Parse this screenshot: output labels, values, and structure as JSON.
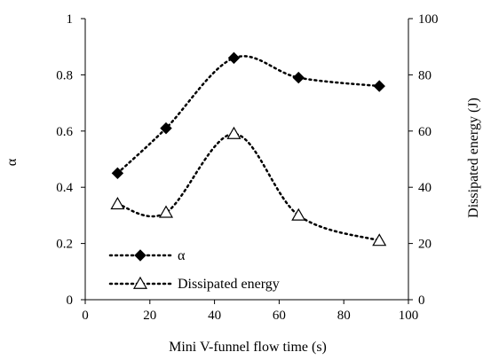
{
  "chart_data": {
    "type": "line",
    "x": [
      10,
      25,
      46,
      66,
      91
    ],
    "xlabel": "Mini V-funnel flow time (s)",
    "xlim": [
      0,
      100
    ],
    "xticks": [
      "0",
      "20",
      "40",
      "60",
      "80",
      "100"
    ],
    "ylabel_left": "α",
    "ylim_left": [
      0,
      1
    ],
    "yticks_left": [
      "0",
      "0.2",
      "0.4",
      "0.6",
      "0.8",
      "1"
    ],
    "ylabel_right": "Dissipated energy (J)",
    "ylim_right": [
      0,
      100
    ],
    "yticks_right": [
      "0",
      "20",
      "40",
      "60",
      "80",
      "100"
    ],
    "grid": false,
    "legend_position": "bottom-left",
    "series": [
      {
        "name": "α",
        "axis": "left",
        "marker": "filled-diamond",
        "line_style": "dotted",
        "color": "#000000",
        "values": [
          0.45,
          0.61,
          0.86,
          0.79,
          0.76
        ]
      },
      {
        "name": "Dissipated energy",
        "axis": "right",
        "marker": "open-triangle",
        "line_style": "dotted",
        "color": "#000000",
        "values": [
          34,
          31,
          59,
          30,
          21
        ]
      }
    ]
  }
}
